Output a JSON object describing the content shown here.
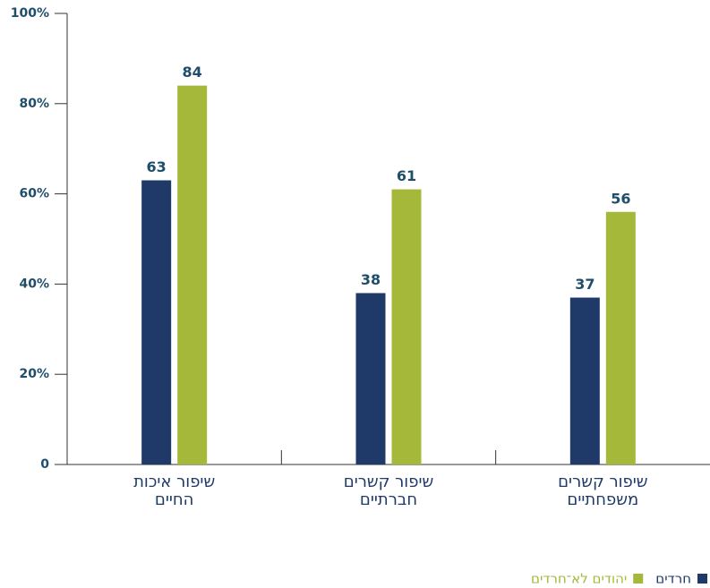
{
  "chart_data": {
    "type": "bar",
    "categories": [
      [
        "שיפור איכות",
        "החיים"
      ],
      [
        "שיפור קשרים",
        "חברתיים"
      ],
      [
        "שיפור קשרים",
        "משפחתיים"
      ]
    ],
    "series": [
      {
        "name": "חרדים",
        "color": "#1f3a68",
        "values": [
          63,
          38,
          37
        ]
      },
      {
        "name": "יהודים לא־חרדים",
        "color": "#a5b83a",
        "values": [
          84,
          61,
          56
        ]
      }
    ],
    "ylim": [
      0,
      100
    ],
    "yticks": [
      0,
      {
        "value": 20,
        "label": "20%"
      },
      {
        "value": 40,
        "label": "40%"
      },
      {
        "value": 60,
        "label": "60%"
      },
      {
        "value": 80,
        "label": "80%"
      },
      {
        "value": 100,
        "label": "100%"
      }
    ],
    "legend": "bottom-right"
  }
}
